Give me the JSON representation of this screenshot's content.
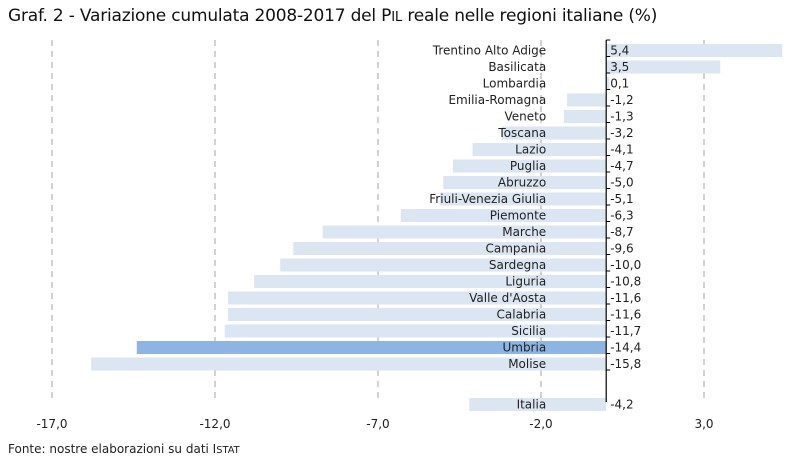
{
  "title": {
    "prefix": "Graf. 2 - Variazione cumulata 2008-2017 del P",
    "smallcaps": "IL",
    "suffix": " reale nelle regioni italiane (%)"
  },
  "source": {
    "prefix": "Fonte: nostre elaborazioni su dati I",
    "smallcaps": "STAT"
  },
  "colors": {
    "bar": "#dce6f2",
    "highlight": "#8eb4e3",
    "grid": "#a6a6a6",
    "axis": "#000000",
    "text": "#222222"
  },
  "chart_data": {
    "type": "bar",
    "orientation": "horizontal",
    "categories": [
      "Trentino Alto Adige",
      "Basilicata",
      "Lombardia",
      "Emilia-Romagna",
      "Veneto",
      "Toscana",
      "Lazio",
      "Puglia",
      "Abruzzo",
      "Friuli-Venezia Giulia",
      "Piemonte",
      "Marche",
      "Campania",
      "Sardegna",
      "Liguria",
      "Valle d'Aosta",
      "Calabria",
      "Sicilia",
      "Umbria",
      "Molise",
      "Italia"
    ],
    "values": [
      5.4,
      3.5,
      0.1,
      -1.2,
      -1.3,
      -3.2,
      -4.1,
      -4.7,
      -5.0,
      -5.1,
      -6.3,
      -8.7,
      -9.6,
      -10.0,
      -10.8,
      -11.6,
      -11.6,
      -11.7,
      -14.4,
      -15.8,
      -4.2
    ],
    "value_labels": [
      "5,4",
      "3,5",
      "0,1",
      "-1,2",
      "-1,3",
      "-3,2",
      "-4,1",
      "-4,7",
      "-5,0",
      "-5,1",
      "-6,3",
      "-8,7",
      "-9,6",
      "-10,0",
      "-10,8",
      "-11,6",
      "-11,6",
      "-11,7",
      "-14,4",
      "-15,8",
      "-4,2"
    ],
    "highlighted": [
      "Umbria"
    ],
    "xlim": [
      -17.0,
      5.5
    ],
    "xticks": [
      -17.0,
      -12.0,
      -7.0,
      -2.0,
      3.0
    ],
    "xtick_labels": [
      "-17,0",
      "-12,0",
      "-7,0",
      "-2,0",
      "3,0"
    ],
    "grid": "vertical dashed",
    "legend": "none",
    "ylabel": "",
    "xlabel": ""
  }
}
